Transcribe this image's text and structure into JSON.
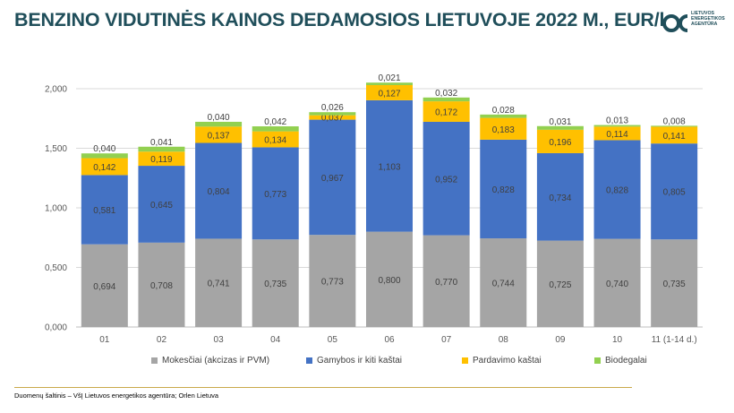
{
  "header": {
    "title": "BENZINO VIDUTINĖS KAINOS DEDAMOSIOS LIETUVOJE 2022 M., EUR/l",
    "logo_text": [
      "LIETUVOS",
      "ENERGETIKOS",
      "AGENTŪRA"
    ]
  },
  "footer": {
    "source": "Duomenų šaltinis – VšĮ Lietuvos energetikos agentūra; Orlen Lietuva"
  },
  "colors": {
    "title": "#1f4e5a",
    "logo": "#1f4e5a",
    "gridline": "#d9d9d9",
    "axis_text": "#595959"
  },
  "chart_data": {
    "type": "bar",
    "stacked": true,
    "categories": [
      "01",
      "02",
      "03",
      "04",
      "05",
      "06",
      "07",
      "08",
      "09",
      "10",
      "11 (1-14 d.)"
    ],
    "ylim": [
      0,
      2.0
    ],
    "yticks": [
      0,
      0.5,
      1.0,
      1.5,
      2.0
    ],
    "ytick_labels": [
      "0,000",
      "0,500",
      "1,000",
      "1,500",
      "2,000"
    ],
    "grid": true,
    "legend_position": "bottom",
    "series": [
      {
        "name": "Mokesčiai (akcizas ir PVM)",
        "color": "#a5a5a5",
        "values": [
          0.694,
          0.708,
          0.741,
          0.735,
          0.773,
          0.8,
          0.77,
          0.744,
          0.725,
          0.74,
          0.735
        ],
        "labels": [
          "0,694",
          "0,708",
          "0,741",
          "0,735",
          "0,773",
          "0,800",
          "0,770",
          "0,744",
          "0,725",
          "0,740",
          "0,735"
        ]
      },
      {
        "name": "Gamybos ir kiti kaštai",
        "color": "#4472c4",
        "values": [
          0.581,
          0.645,
          0.804,
          0.773,
          0.967,
          1.103,
          0.952,
          0.828,
          0.734,
          0.828,
          0.805
        ],
        "labels": [
          "0,581",
          "0,645",
          "0,804",
          "0,773",
          "0,967",
          "1,103",
          "0,952",
          "0,828",
          "0,734",
          "0,828",
          "0,805"
        ]
      },
      {
        "name": "Pardavimo kaštai",
        "color": "#ffc000",
        "values": [
          0.142,
          0.119,
          0.137,
          0.134,
          0.037,
          0.127,
          0.172,
          0.183,
          0.196,
          0.114,
          0.141
        ],
        "labels": [
          "0,142",
          "0,119",
          "0,137",
          "0,134",
          "0,037",
          "0,127",
          "0,172",
          "0,183",
          "0,196",
          "0,114",
          "0,141"
        ]
      },
      {
        "name": "Biodegalai",
        "color": "#92d050",
        "values": [
          0.04,
          0.041,
          0.04,
          0.042,
          0.026,
          0.021,
          0.032,
          0.028,
          0.031,
          0.013,
          0.008
        ],
        "labels": [
          "0,040",
          "0,041",
          "0,040",
          "0,042",
          "0,026",
          "0,021",
          "0,032",
          "0,028",
          "0,031",
          "0,013",
          "0,008"
        ]
      }
    ]
  }
}
